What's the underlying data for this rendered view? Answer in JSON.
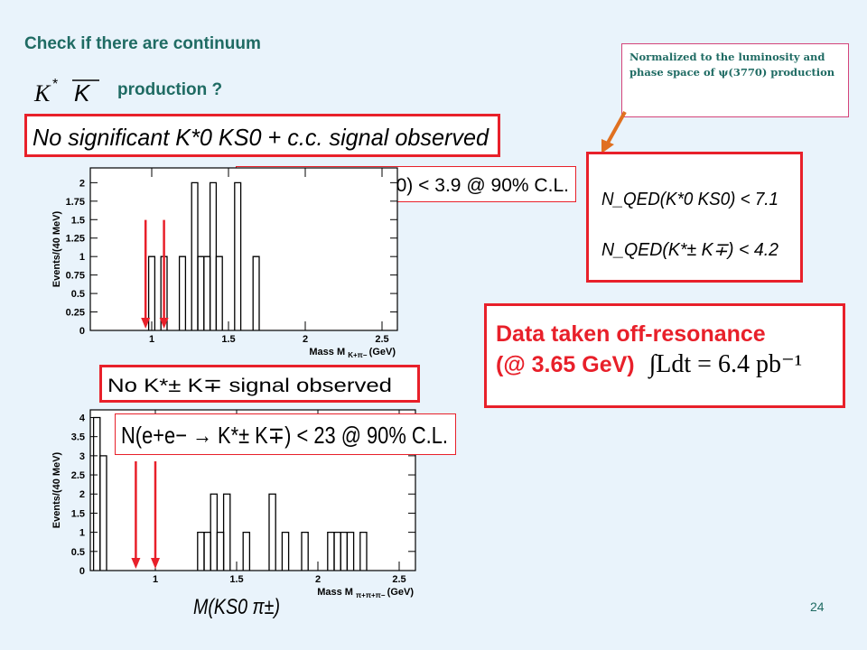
{
  "slide": {
    "title_line1": "Check if there are continuum",
    "title_line2": "production ?",
    "page_number": "24",
    "note": "Normalized to the luminosity and phase space of ψ(3770) production",
    "offres_line1": "Data taken off-resonance",
    "offres_line2": "(@ 3.65 GeV)",
    "offres_integral": "∫Ldt = 6.4 pb⁻¹",
    "top_box": "No significant K*0 KS0 + c.c. signal observed",
    "top_limit": "N(e+e− → K*0 KS0) < 3.9 @ 90% C.L.",
    "norm_limit1": "N_QED(K*0 KS0) < 7.1",
    "norm_limit2": "N_QED(K*± K∓) < 4.2",
    "bottom_box": "No K*± K∓ signal observed",
    "bottom_limit": "N(e+e− → K*± K∓) < 23 @ 90% C.L.",
    "bottom_xlabel_math": "M(KS0 π±)"
  },
  "colors": {
    "accent_red": "#e8202a",
    "title_teal": "#1f6b63",
    "background": "#e9f3fb",
    "arrow_orange": "#e07020"
  },
  "chart_data": [
    {
      "type": "bar",
      "id": "top-histogram",
      "ylabel": "Events/(40 MeV)",
      "xlabel": "Mass M",
      "xlabel_sub": "K+π−",
      "xlabel_unit": "(GeV)",
      "bin_width": 0.04,
      "xlim": [
        0.6,
        2.6
      ],
      "ylim": [
        0,
        2.2
      ],
      "yticks": [
        0,
        0.25,
        0.5,
        0.75,
        1,
        1.25,
        1.5,
        1.75,
        2
      ],
      "ytick_labels": [
        "0",
        "0.25",
        "0.5",
        "0.75",
        "1",
        "1.25",
        "1.5",
        "1.75",
        "2"
      ],
      "xticks": [
        1,
        1.5,
        2,
        2.5
      ],
      "xtick_labels": [
        "1",
        "1.5",
        "2",
        "2.5"
      ],
      "bins": [
        {
          "x": 0.98,
          "y": 1
        },
        {
          "x": 1.06,
          "y": 1
        },
        {
          "x": 1.18,
          "y": 1
        },
        {
          "x": 1.26,
          "y": 2
        },
        {
          "x": 1.3,
          "y": 1
        },
        {
          "x": 1.34,
          "y": 1
        },
        {
          "x": 1.38,
          "y": 2
        },
        {
          "x": 1.42,
          "y": 1
        },
        {
          "x": 1.54,
          "y": 2
        },
        {
          "x": 1.66,
          "y": 1
        }
      ],
      "arrows_x": [
        0.96,
        1.08
      ]
    },
    {
      "type": "bar",
      "id": "bottom-histogram",
      "ylabel": "Events/(40 MeV)",
      "xlabel": "Mass M",
      "xlabel_sub": "π+π+π−",
      "xlabel_unit": "(GeV)",
      "bin_width": 0.04,
      "xlim": [
        0.6,
        2.6
      ],
      "ylim": [
        0,
        4.2
      ],
      "yticks": [
        0,
        0.5,
        1,
        1.5,
        2,
        2.5,
        3,
        3.5,
        4
      ],
      "ytick_labels": [
        "0",
        "0.5",
        "1",
        "1.5",
        "2",
        "2.5",
        "3",
        "3.5",
        "4"
      ],
      "xticks": [
        1,
        1.5,
        2,
        2.5
      ],
      "xtick_labels": [
        "1",
        "1.5",
        "2",
        "2.5"
      ],
      "bins": [
        {
          "x": 0.62,
          "y": 4
        },
        {
          "x": 0.66,
          "y": 3
        },
        {
          "x": 1.26,
          "y": 1
        },
        {
          "x": 1.3,
          "y": 1
        },
        {
          "x": 1.34,
          "y": 2
        },
        {
          "x": 1.38,
          "y": 1
        },
        {
          "x": 1.42,
          "y": 2
        },
        {
          "x": 1.54,
          "y": 1
        },
        {
          "x": 1.7,
          "y": 2
        },
        {
          "x": 1.78,
          "y": 1
        },
        {
          "x": 1.9,
          "y": 1
        },
        {
          "x": 2.06,
          "y": 1
        },
        {
          "x": 2.1,
          "y": 1
        },
        {
          "x": 2.14,
          "y": 1
        },
        {
          "x": 2.18,
          "y": 1
        },
        {
          "x": 2.26,
          "y": 1
        }
      ],
      "arrows_x": [
        0.88,
        1.0
      ]
    }
  ]
}
